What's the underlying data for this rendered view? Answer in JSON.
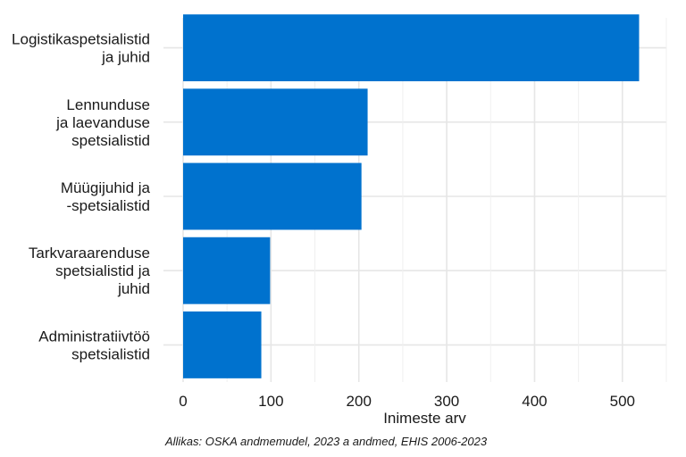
{
  "chart_data": {
    "type": "bar",
    "orientation": "horizontal",
    "categories": [
      [
        "Logistikaspetsialistid",
        "ja juhid"
      ],
      [
        "Lennunduse",
        "ja laevanduse",
        "spetsialistid"
      ],
      [
        "Müügijuhid ja",
        "-spetsialistid"
      ],
      [
        "Tarkvaraarenduse",
        "spetsialistid ja",
        "juhid"
      ],
      [
        "Administratiivtöö",
        "spetsialistid"
      ]
    ],
    "values": [
      519,
      210,
      203,
      99,
      89
    ],
    "xlabel": "Inimeste arv",
    "ylabel": "",
    "xlim": [
      0,
      550
    ],
    "xticks": [
      0,
      100,
      200,
      300,
      400,
      500
    ],
    "tick_labels": [
      "0",
      "100",
      "200",
      "300",
      "400",
      "500"
    ],
    "grid": true,
    "bar_color": "#0072ce"
  },
  "source": "Allikas: OSKA andmemudel, 2023 a andmed, EHIS 2006-2023"
}
